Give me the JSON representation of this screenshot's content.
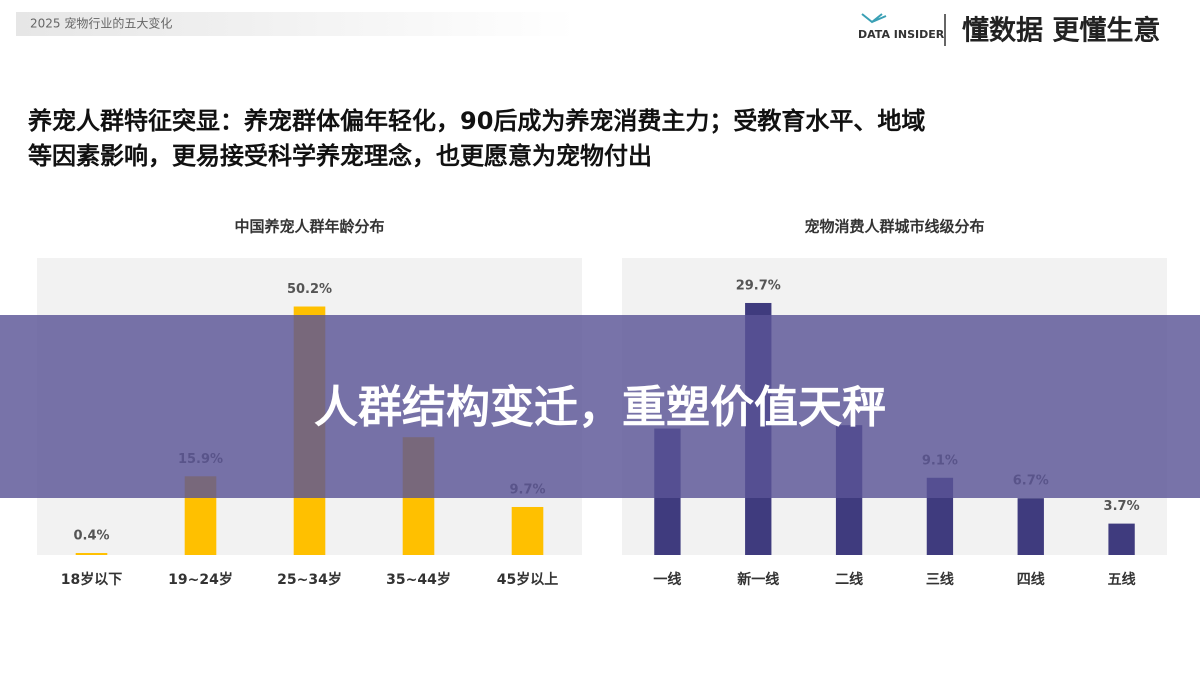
{
  "header": {
    "label": "2025  宠物行业的五大变化",
    "logo": "DATA INSIDER",
    "slogan": "懂数据 更懂生意"
  },
  "headline": [
    "养宠人群特征突显：养宠群体偏年轻化，90后成为养宠消费主力；受教育水平、地域",
    "等因素影响，更易接受科学养宠理念，也更愿意为宠物付出"
  ],
  "banner": "人群结构变迁，重塑价值天秤",
  "chart_data": [
    {
      "type": "bar",
      "title": "中国养宠人群年龄分布",
      "categories": [
        "18岁以下",
        "19~24岁",
        "25~34岁",
        "35~44岁",
        "45岁以上"
      ],
      "values": [
        0.4,
        15.9,
        50.2,
        23.8,
        9.7
      ],
      "value_labels": [
        "0.4%",
        "15.9%",
        "50.2%",
        null,
        "9.7%"
      ],
      "color": "#ffc000",
      "ylim": [
        0,
        60
      ]
    },
    {
      "type": "bar",
      "title": "宠物消费人群城市线级分布",
      "categories": [
        "一线",
        "新一线",
        "二线",
        "三线",
        "四线",
        "五线"
      ],
      "values": [
        14.9,
        29.7,
        15.3,
        9.1,
        6.7,
        3.7
      ],
      "value_labels": [
        null,
        "29.7%",
        null,
        "9.1%",
        "6.7%",
        "3.7%"
      ],
      "color": "#3f3b7e",
      "ylim": [
        0,
        35
      ]
    }
  ]
}
